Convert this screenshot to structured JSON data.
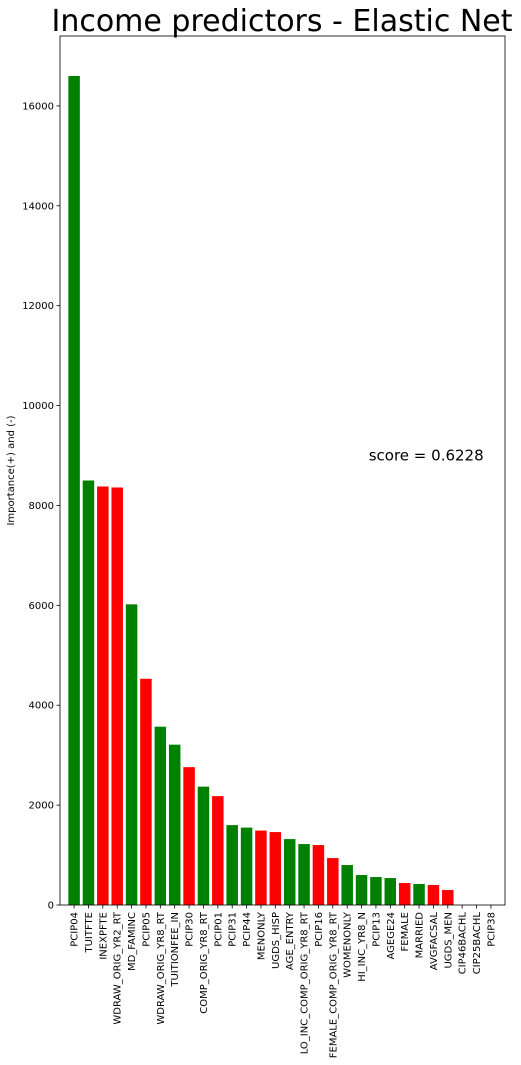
{
  "chart_data": {
    "type": "bar",
    "title": "Income predictors - Elastic Net",
    "xlabel": "",
    "ylabel": "Importance(+) and (-)",
    "ylim": [
      0,
      17400
    ],
    "yticks": [
      0,
      2000,
      4000,
      6000,
      8000,
      10000,
      12000,
      14000,
      16000
    ],
    "grid": false,
    "annotation": "score  = 0.6228",
    "annotation_position": {
      "x": 20.5,
      "y": 9000
    },
    "colors": {
      "positive": "#008000",
      "negative": "#ff0000"
    },
    "categories": [
      "PCIP04",
      "TUITFTE",
      "INEXPFTE",
      "WDRAW_ORIG_YR2_RT",
      "MD_FAMINC",
      "PCIP05",
      "WDRAW_ORIG_YR8_RT",
      "TUITIONFEE_IN",
      "PCIP30",
      "COMP_ORIG_YR8_RT",
      "PCIP01",
      "PCIP31",
      "PCIP44",
      "MENONLY",
      "UGDS_HISP",
      "AGE_ENTRY",
      "LO_INC_COMP_ORIG_YR8_RT",
      "PCIP16",
      "FEMALE_COMP_ORIG_YR8_RT",
      "WOMENONLY",
      "HI_INC_YR8_N",
      "PCIP13",
      "AGEGE24",
      "FEMALE",
      "MARRIED",
      "AVGFACSAL",
      "UGDS_MEN",
      "CIP46BACHL",
      "CIP25BACHL",
      "PCIP38"
    ],
    "values": [
      16600,
      8500,
      8380,
      8360,
      6020,
      4530,
      3570,
      3210,
      2760,
      2370,
      2180,
      1600,
      1550,
      1490,
      1460,
      1320,
      1220,
      1200,
      940,
      800,
      600,
      560,
      540,
      440,
      420,
      400,
      300,
      0,
      0,
      0
    ],
    "signs": [
      "+",
      "+",
      "-",
      "-",
      "+",
      "-",
      "+",
      "+",
      "-",
      "+",
      "-",
      "+",
      "+",
      "-",
      "-",
      "+",
      "+",
      "-",
      "-",
      "+",
      "+",
      "+",
      "+",
      "-",
      "+",
      "-",
      "-",
      "+",
      "+",
      "+"
    ]
  }
}
